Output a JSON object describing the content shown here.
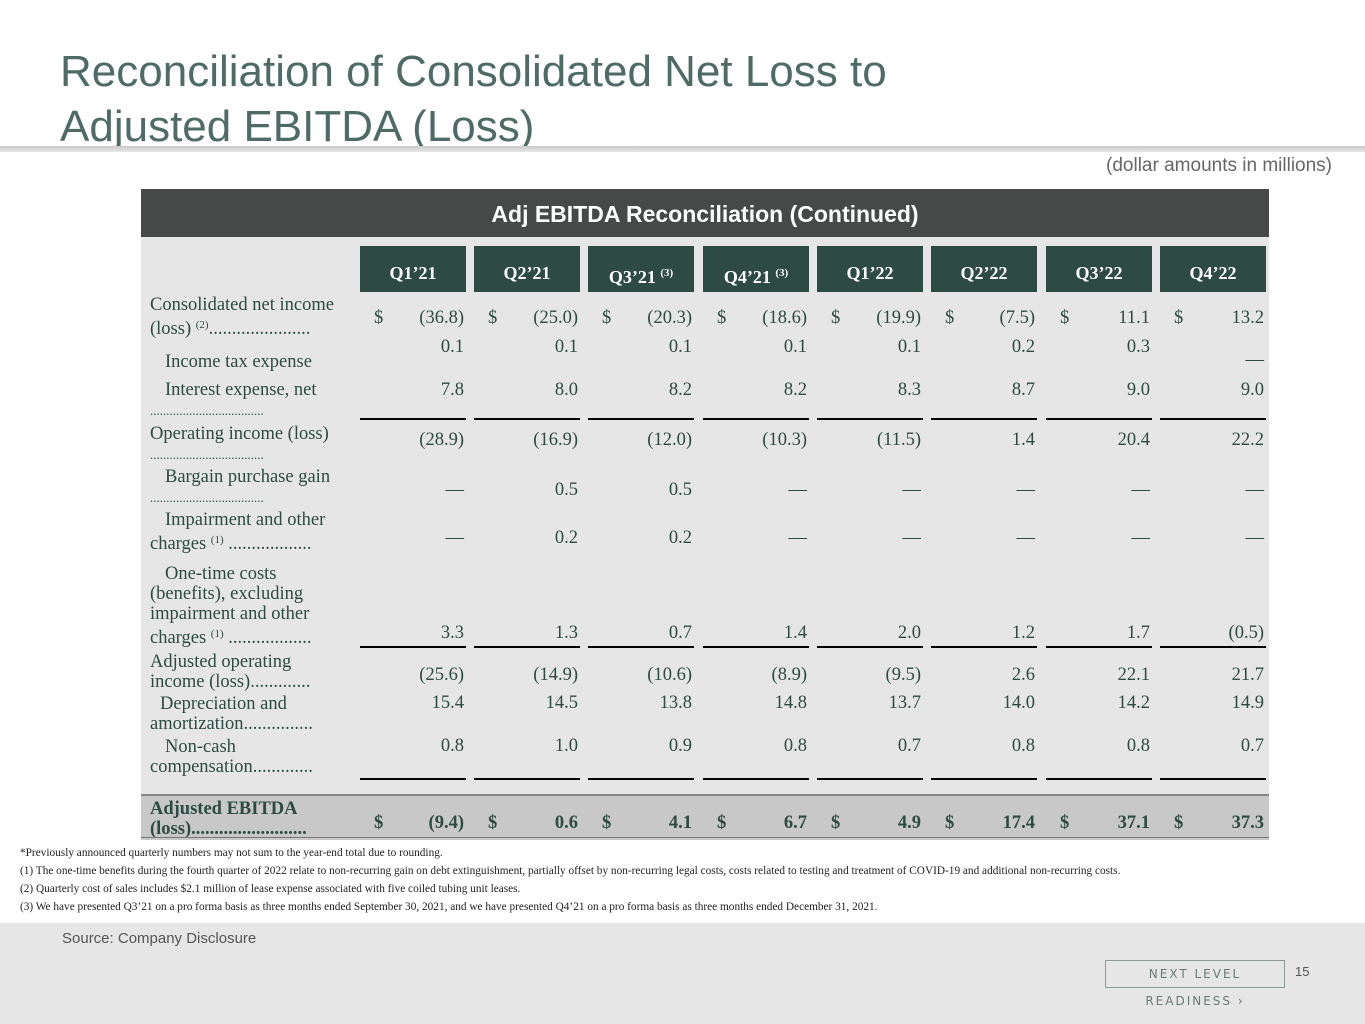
{
  "title_line1": "Reconciliation of Consolidated Net Loss to",
  "title_line2": "Adjusted EBITDA (Loss)",
  "units_note": "(dollar amounts in millions)",
  "table_title": "Adj EBITDA Reconciliation (Continued)",
  "columns": [
    {
      "label": "Q1’21",
      "sup": ""
    },
    {
      "label": "Q2’21",
      "sup": ""
    },
    {
      "label": "Q3’21",
      "sup": "(3)"
    },
    {
      "label": "Q4’21",
      "sup": "(3)"
    },
    {
      "label": "Q1’22",
      "sup": ""
    },
    {
      "label": "Q2’22",
      "sup": ""
    },
    {
      "label": "Q3’22",
      "sup": ""
    },
    {
      "label": "Q4’22",
      "sup": ""
    }
  ],
  "currency_symbol": "$",
  "rows": {
    "net_income": {
      "label1": "Consolidated net income",
      "label2": "(loss)",
      "sup": "(2)",
      "dots": "......................",
      "values": [
        "(36.8)",
        "(25.0)",
        "(20.3)",
        "(18.6)",
        "(19.9)",
        "(7.5)",
        "11.1",
        "13.2"
      ]
    },
    "income_tax": {
      "label": "Income tax expense",
      "values": [
        "0.1",
        "0.1",
        "0.1",
        "0.1",
        "0.1",
        "0.2",
        "0.3",
        "—"
      ]
    },
    "interest": {
      "label": "Interest expense, net",
      "dots": "...................................",
      "values": [
        "7.8",
        "8.0",
        "8.2",
        "8.2",
        "8.3",
        "8.7",
        "9.0",
        "9.0"
      ]
    },
    "operating": {
      "label": "Operating income (loss)",
      "dots": "...................................",
      "values": [
        "(28.9)",
        "(16.9)",
        "(12.0)",
        "(10.3)",
        "(11.5)",
        "1.4",
        "20.4",
        "22.2"
      ]
    },
    "bargain": {
      "label": "Bargain purchase gain",
      "dots": "...................................",
      "values": [
        "—",
        "0.5",
        "0.5",
        "—",
        "—",
        "—",
        "—",
        "—"
      ]
    },
    "impairment": {
      "label1": "Impairment and other",
      "label2": "charges",
      "sup": "(1)",
      "dots": "..................",
      "values": [
        "—",
        "0.2",
        "0.2",
        "—",
        "—",
        "—",
        "—",
        "—"
      ]
    },
    "one_time": {
      "label1": "One-time costs",
      "label2": "(benefits), excluding",
      "label3": "impairment and other",
      "label4": "charges",
      "sup": "(1)",
      "dots": "..................",
      "values": [
        "3.3",
        "1.3",
        "0.7",
        "1.4",
        "2.0",
        "1.2",
        "1.7",
        "(0.5)"
      ]
    },
    "adj_operating": {
      "label1": "Adjusted operating",
      "label2": "income (loss)",
      "dots": ".............",
      "values": [
        "(25.6)",
        "(14.9)",
        "(10.6)",
        "(8.9)",
        "(9.5)",
        "2.6",
        "22.1",
        "21.7"
      ]
    },
    "depreciation": {
      "label1": "Depreciation and",
      "label2": "amortization",
      "dots": "...............",
      "values": [
        "15.4",
        "14.5",
        "13.8",
        "14.8",
        "13.7",
        "14.0",
        "14.2",
        "14.9"
      ]
    },
    "non_cash": {
      "label1": "Non-cash",
      "label2": "compensation",
      "dots": ".............",
      "values": [
        "0.8",
        "1.0",
        "0.9",
        "0.8",
        "0.7",
        "0.8",
        "0.8",
        "0.7"
      ]
    },
    "adj_ebitda": {
      "label1": "Adjusted EBITDA",
      "label2": "(loss)",
      "dots": ".........................",
      "values": [
        "(9.4)",
        "0.6",
        "4.1",
        "6.7",
        "4.9",
        "17.4",
        "37.1",
        "37.3"
      ]
    }
  },
  "footnotes": [
    "*Previously announced quarterly numbers may not sum to the year-end total due to rounding.",
    "(1) The one-time benefits during the fourth quarter of 2022 relate to non-recurring gain on debt extinguishment, partially offset by non-recurring legal costs, costs related to testing and treatment of COVID-19 and additional non-recurring costs.",
    "(2) Quarterly cost of sales includes $2.1 million of lease expense associated with five coiled tubing unit leases.",
    "(3) We have presented Q3’21 on a pro forma basis as three months ended September 30, 2021, and we have presented Q4’21 on a pro forma basis as three months ended December 31, 2021."
  ],
  "source": "Source: Company Disclosure",
  "logo_text": "NEXT LEVEL READINESS ›",
  "page_number": "15"
}
